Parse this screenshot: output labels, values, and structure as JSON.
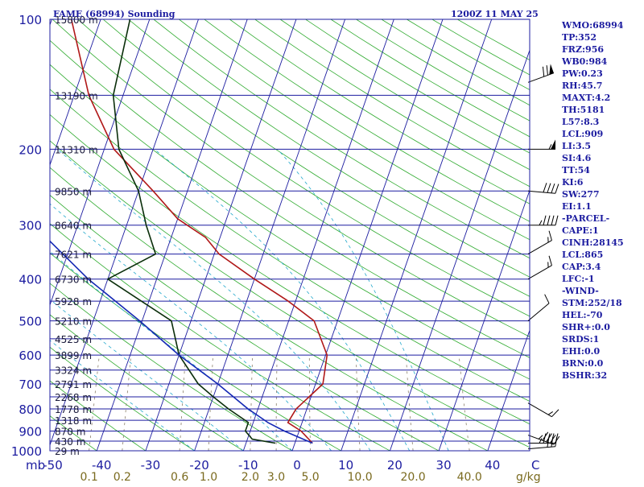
{
  "header": {
    "title": "FAME (68994) Sounding",
    "time": "1200Z 11 MAY 25"
  },
  "stats": [
    "WMO:68994",
    "TP:352",
    "FRZ:956",
    "WB0:984",
    "PW:0.23",
    "RH:45.7",
    "MAXT:4.2",
    "TH:5181",
    "L57:8.3",
    "LCL:909",
    "LI:3.5",
    "SI:4.6",
    "TT:54",
    "KI:6",
    "SW:277",
    "EI:1.1",
    "-PARCEL-",
    "CAPE:1",
    "CINH:28145",
    "LCL:865",
    "CAP:3.4",
    "LFC:-1",
    "-WIND-",
    "STM:252/18",
    "HEL:-70",
    "SHR+:0.0",
    "SRDS:1",
    "EHI:0.0",
    "BRN:0.0",
    "BSHR:32"
  ],
  "colors": {
    "background": "#ffffff",
    "isobar": "#1c1ca0",
    "isotherm": "#1c1ca0",
    "dry_adiabat": "#2eaa2e",
    "moist_adiabat": "#22a8cc",
    "mixing_ratio": "#8a7f6a",
    "temperature": "#b01818",
    "dewpoint": "#0a2e0a",
    "parcel": "#1428b4",
    "text": "#1c1ca0",
    "bottom_labels": "#7a6a1e",
    "wind_barb": "#000000"
  },
  "chart_data": {
    "type": "line",
    "title": "FAME (68994) Sounding",
    "subtitle": "1200Z 11 MAY 25",
    "y_unit_label": "mb",
    "pressure_ticks": [
      100,
      200,
      300,
      400,
      500,
      600,
      700,
      800,
      900,
      1000
    ],
    "pressure_labels": [
      "100",
      "200",
      "300",
      "400",
      "500",
      "600",
      "700",
      "800",
      "900",
      "1000"
    ],
    "temperature_ticks": [
      -50,
      -40,
      -30,
      -20,
      -10,
      0,
      10,
      20,
      30,
      40
    ],
    "temperature_labels": [
      "-50",
      "-40",
      "-30",
      "-20",
      "-10",
      "0",
      "10",
      "20",
      "30",
      "40"
    ],
    "bottom_right_label": "C",
    "mixing_ratio_values": [
      0.1,
      0.2,
      0.6,
      1.0,
      2.0,
      3.0,
      5.0,
      10.0,
      20.0,
      40.0
    ],
    "mixing_ratio_labels": [
      "0.1",
      "0.2",
      "0.6",
      "1.0",
      "2.0",
      "3.0",
      "5.0",
      "10.0",
      "20.0",
      "40.0"
    ],
    "mixing_ratio_unit": "g/kg",
    "height_levels": [
      {
        "p": 100,
        "h": "15800 m"
      },
      {
        "p": 150,
        "h": "13190 m"
      },
      {
        "p": 200,
        "h": "11310 m"
      },
      {
        "p": 250,
        "h": "9850 m"
      },
      {
        "p": 300,
        "h": "8640 m"
      },
      {
        "p": 350,
        "h": "7621 m"
      },
      {
        "p": 400,
        "h": "6730 m"
      },
      {
        "p": 450,
        "h": "5928 m"
      },
      {
        "p": 500,
        "h": "5210 m"
      },
      {
        "p": 550,
        "h": "4525 m"
      },
      {
        "p": 600,
        "h": "3899 m"
      },
      {
        "p": 650,
        "h": "3324 m"
      },
      {
        "p": 700,
        "h": "2791 m"
      },
      {
        "p": 750,
        "h": "2268 m"
      },
      {
        "p": 800,
        "h": "1778 m"
      },
      {
        "p": 850,
        "h": "1318 m"
      },
      {
        "p": 900,
        "h": "870 m"
      },
      {
        "p": 950,
        "h": "430 m"
      },
      {
        "p": 1000,
        "h": "29 m"
      }
    ],
    "series": [
      {
        "key": "temperature",
        "points": [
          [
            960,
            3.6
          ],
          [
            900,
            0.4
          ],
          [
            860,
            -2.9
          ],
          [
            800,
            -2.2
          ],
          [
            700,
            1.5
          ],
          [
            600,
            0.3
          ],
          [
            500,
            -4.8
          ],
          [
            450,
            -11.5
          ],
          [
            400,
            -20
          ],
          [
            350,
            -29
          ],
          [
            320,
            -33
          ],
          [
            290,
            -40
          ],
          [
            250,
            -47
          ],
          [
            200,
            -58
          ],
          [
            150,
            -67
          ],
          [
            100,
            -76
          ]
        ]
      },
      {
        "key": "dewpoint",
        "points": [
          [
            960,
            -4
          ],
          [
            940,
            -9
          ],
          [
            900,
            -11
          ],
          [
            860,
            -11
          ],
          [
            800,
            -16
          ],
          [
            750,
            -20
          ],
          [
            700,
            -24
          ],
          [
            600,
            -30
          ],
          [
            500,
            -34
          ],
          [
            400,
            -50
          ],
          [
            350,
            -42
          ],
          [
            300,
            -46
          ],
          [
            250,
            -50
          ],
          [
            200,
            -57
          ],
          [
            150,
            -62
          ],
          [
            100,
            -64
          ]
        ]
      },
      {
        "key": "parcel",
        "points": [
          [
            960,
            3.6
          ],
          [
            900,
            -3
          ],
          [
            860,
            -7
          ],
          [
            800,
            -12
          ],
          [
            700,
            -20
          ],
          [
            600,
            -30
          ],
          [
            500,
            -40.5
          ],
          [
            400,
            -54
          ],
          [
            300,
            -69
          ],
          [
            250,
            -77
          ],
          [
            200,
            -86
          ],
          [
            150,
            -96
          ],
          [
            120,
            -104
          ]
        ]
      }
    ],
    "wind_barbs": [
      {
        "p": 140,
        "dir": 290,
        "spd": 70
      },
      {
        "p": 200,
        "dir": 270,
        "spd": 55
      },
      {
        "p": 250,
        "dir": 265,
        "spd": 40
      },
      {
        "p": 300,
        "dir": 270,
        "spd": 45
      },
      {
        "p": 350,
        "dir": 300,
        "spd": 15
      },
      {
        "p": 400,
        "dir": 300,
        "spd": 15
      },
      {
        "p": 500,
        "dir": 310,
        "spd": 10
      },
      {
        "p": 775,
        "dir": 240,
        "spd": 15
      },
      {
        "p": 920,
        "dir": 250,
        "spd": 45
      },
      {
        "p": 960,
        "dir": 270,
        "spd": 45
      },
      {
        "p": 990,
        "dir": 275,
        "spd": 30
      }
    ],
    "xlim": [
      -50,
      50
    ],
    "ylim": [
      1000,
      100
    ],
    "scale": "log-pressure",
    "grid": true
  }
}
